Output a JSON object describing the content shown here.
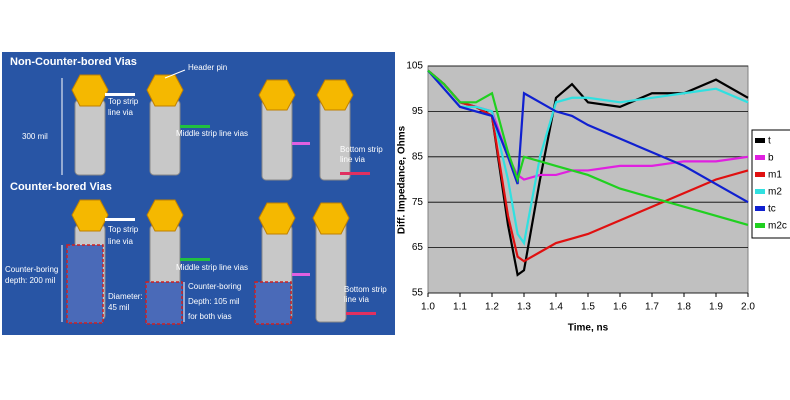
{
  "diagram": {
    "title_top": "Non-Counter-bored Vias",
    "title_bottom": "Counter-bored Vias",
    "header_pin": "Header pin",
    "top_via_1": [
      "Top strip",
      "line via"
    ],
    "height": "300 mil",
    "middle_vias_1": "Middle strip line vias",
    "bottom_via_1": [
      "Bottom strip",
      "line via"
    ],
    "top_via_2": [
      "Top strip",
      "line via"
    ],
    "middle_vias_2": "Middle strip line vias",
    "bottom_via_2": [
      "Bottom strip",
      "line via"
    ],
    "boring_depth": [
      "Counter-boring",
      "depth: 200 mil"
    ],
    "diameter": [
      "Diameter:",
      "45 mil"
    ],
    "boring_depth_2": [
      "Counter-boring",
      "Depth: 105 mil",
      "for both vias"
    ]
  },
  "chart_data": {
    "type": "line",
    "x_label": "Time, ns",
    "y_label": "Diff. Impedance, Ohms",
    "x": [
      1.0,
      1.05,
      1.1,
      1.15,
      1.2,
      1.25,
      1.28,
      1.3,
      1.35,
      1.4,
      1.45,
      1.5,
      1.6,
      1.7,
      1.8,
      1.9,
      2.0
    ],
    "series": [
      {
        "name": "t",
        "color": "#000000",
        "values": [
          104,
          101,
          97,
          96,
          94,
          70,
          59,
          60,
          80,
          98,
          101,
          97,
          96,
          99,
          99,
          102,
          98
        ]
      },
      {
        "name": "b",
        "color": "#e020e0",
        "values": [
          104,
          101,
          97,
          96,
          95,
          85,
          81,
          80,
          81,
          81,
          82,
          82,
          83,
          83,
          84,
          84,
          85
        ]
      },
      {
        "name": "m1",
        "color": "#e01010",
        "values": [
          104,
          101,
          97,
          96,
          94,
          72,
          63,
          62,
          64,
          66,
          67,
          68,
          71,
          74,
          77,
          80,
          82
        ]
      },
      {
        "name": "m2",
        "color": "#30e0e0",
        "values": [
          104,
          100,
          96,
          96,
          95,
          80,
          68,
          66,
          85,
          97,
          98,
          98,
          97,
          98,
          99,
          100,
          97
        ]
      },
      {
        "name": "tc",
        "color": "#1020d0",
        "values": [
          104,
          100,
          96,
          95,
          94,
          85,
          79,
          99,
          97,
          95,
          94,
          92,
          89,
          86,
          83,
          79,
          75
        ]
      },
      {
        "name": "m2c",
        "color": "#20d020",
        "values": [
          104,
          101,
          97,
          97,
          99,
          86,
          80,
          85,
          84,
          83,
          82,
          81,
          78,
          76,
          74,
          72,
          70
        ]
      }
    ],
    "xlim": [
      1.0,
      2.0
    ],
    "ylim": [
      55,
      105
    ],
    "xticks": [
      {
        "value": 1.0,
        "label": "1.0"
      },
      1.1,
      1.2,
      1.3,
      1.4,
      1.5,
      1.6,
      1.7,
      1.8,
      1.9,
      {
        "value": 2.0,
        "label": "2.0"
      }
    ],
    "yticks": [
      55,
      65,
      75,
      85,
      95,
      105
    ],
    "grid": true,
    "legend": "right"
  }
}
